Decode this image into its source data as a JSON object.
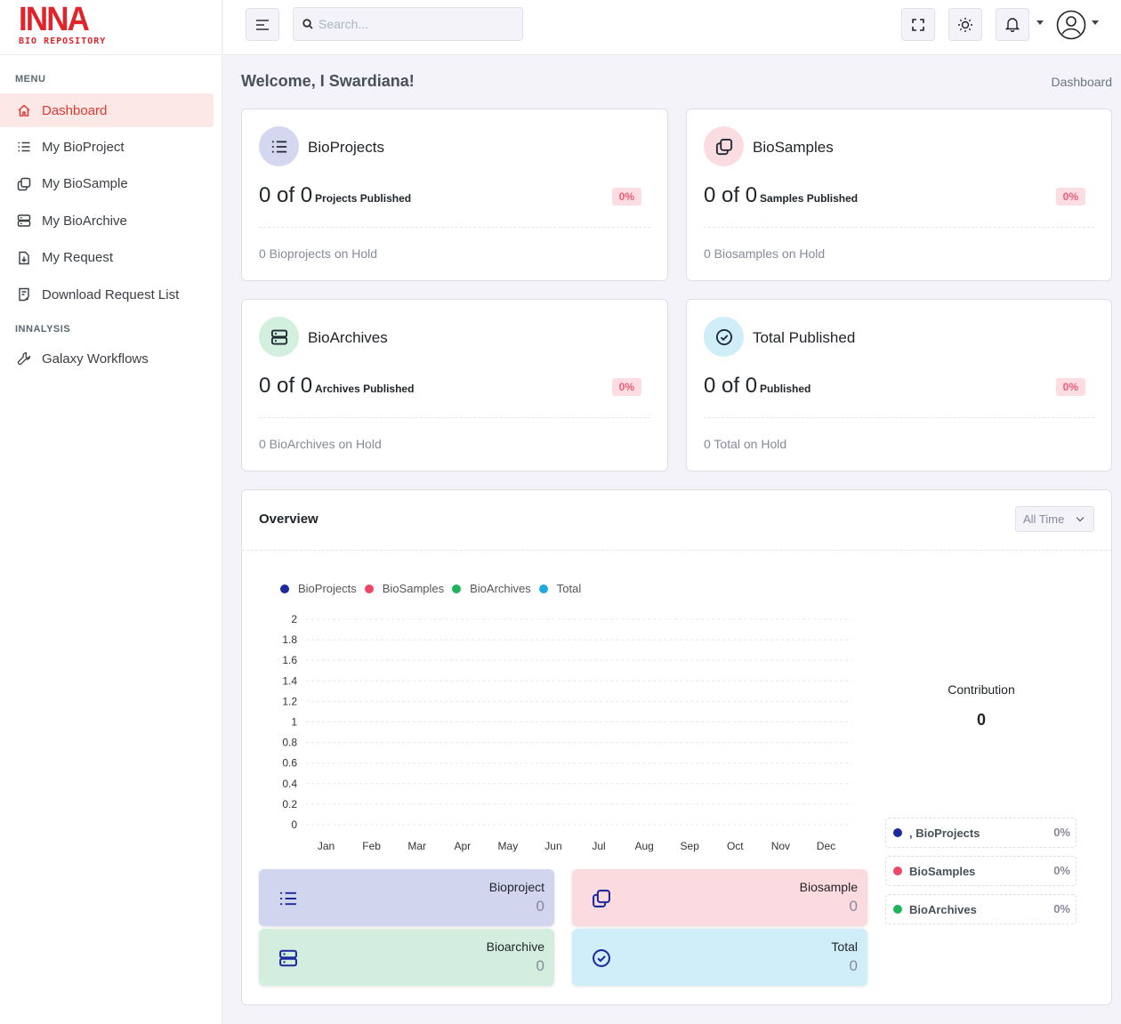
{
  "brand": {
    "name": "INNA",
    "sub": "BIO REPOSITORY",
    "color": "#e0242a"
  },
  "sidebar": {
    "menu_title": "MENU",
    "items": [
      {
        "label": "Dashboard",
        "icon": "home-icon",
        "active": true
      },
      {
        "label": "My BioProject",
        "icon": "list-icon"
      },
      {
        "label": "My BioSample",
        "icon": "copy-icon"
      },
      {
        "label": "My BioArchive",
        "icon": "server-icon"
      },
      {
        "label": "My Request",
        "icon": "file-download-icon"
      },
      {
        "label": "Download Request List",
        "icon": "file-list-icon"
      }
    ],
    "analysis_title": "INNALYSIS",
    "analysis_items": [
      {
        "label": "Galaxy Workflows",
        "icon": "wrench-icon"
      }
    ]
  },
  "header": {
    "search_placeholder": "Search..."
  },
  "page": {
    "welcome": "Welcome, I Swardiana!",
    "breadcrumb": "Dashboard"
  },
  "stats": [
    {
      "title": "BioProjects",
      "count": "0 of 0",
      "count_label": "Projects Published",
      "pct": "0%",
      "hold": "0 Bioprojects on Hold",
      "icon": "list-icon",
      "avatar_color": "#d4d7ef"
    },
    {
      "title": "BioSamples",
      "count": "0 of 0",
      "count_label": "Samples Published",
      "pct": "0%",
      "hold": "0 Biosamples on Hold",
      "icon": "copy-icon",
      "avatar_color": "#fbdde1"
    },
    {
      "title": "BioArchives",
      "count": "0 of 0",
      "count_label": "Archives Published",
      "pct": "0%",
      "hold": "0 BioArchives on Hold",
      "icon": "server-icon",
      "avatar_color": "#d3f0de"
    },
    {
      "title": "Total Published",
      "count": "0 of 0",
      "count_label": "Published",
      "pct": "0%",
      "hold": "0 Total on Hold",
      "icon": "check-circle-icon",
      "avatar_color": "#d0eef8"
    }
  ],
  "overview": {
    "title": "Overview",
    "filter": "All Time",
    "legend": [
      {
        "name": "BioProjects",
        "color": "#1c2a9e"
      },
      {
        "name": "BioSamples",
        "color": "#ee4766"
      },
      {
        "name": "BioArchives",
        "color": "#1fb35c"
      },
      {
        "name": "Total",
        "color": "#1ea9e1"
      }
    ],
    "tiles": [
      {
        "name": "Bioproject",
        "value": "0",
        "icon": "list-icon",
        "bg": "#d1d5ee"
      },
      {
        "name": "Biosample",
        "value": "0",
        "icon": "copy-icon",
        "bg": "#fcdbe0"
      },
      {
        "name": "Bioarchive",
        "value": "0",
        "icon": "server-icon",
        "bg": "#d3eedf"
      },
      {
        "name": "Total",
        "value": "0",
        "icon": "check-circle-icon",
        "bg": "#cfeef9"
      }
    ],
    "contribution": {
      "label": "Contribution",
      "value": "0",
      "items": [
        {
          "name": ", BioProjects",
          "value": "0%",
          "color": "#1c2a9e"
        },
        {
          "name": "BioSamples",
          "value": "0%",
          "color": "#ee4766"
        },
        {
          "name": "BioArchives",
          "value": "0%",
          "color": "#1fb35c"
        }
      ]
    }
  },
  "chart_data": {
    "type": "line",
    "categories": [
      "Jan",
      "Feb",
      "Mar",
      "Apr",
      "May",
      "Jun",
      "Jul",
      "Aug",
      "Sep",
      "Oct",
      "Nov",
      "Dec"
    ],
    "yticks": [
      "2",
      "1.8",
      "1.6",
      "1.4",
      "1.2",
      "1",
      "0.8",
      "0.6",
      "0.4",
      "0.2",
      "0"
    ],
    "ylim": [
      0,
      2
    ],
    "series": [
      {
        "name": "BioProjects",
        "values": [
          0,
          0,
          0,
          0,
          0,
          0,
          0,
          0,
          0,
          0,
          0,
          0
        ]
      },
      {
        "name": "BioSamples",
        "values": [
          0,
          0,
          0,
          0,
          0,
          0,
          0,
          0,
          0,
          0,
          0,
          0
        ]
      },
      {
        "name": "BioArchives",
        "values": [
          0,
          0,
          0,
          0,
          0,
          0,
          0,
          0,
          0,
          0,
          0,
          0
        ]
      },
      {
        "name": "Total",
        "values": [
          0,
          0,
          0,
          0,
          0,
          0,
          0,
          0,
          0,
          0,
          0,
          0
        ]
      }
    ],
    "grid": true,
    "legend": "top-left"
  }
}
